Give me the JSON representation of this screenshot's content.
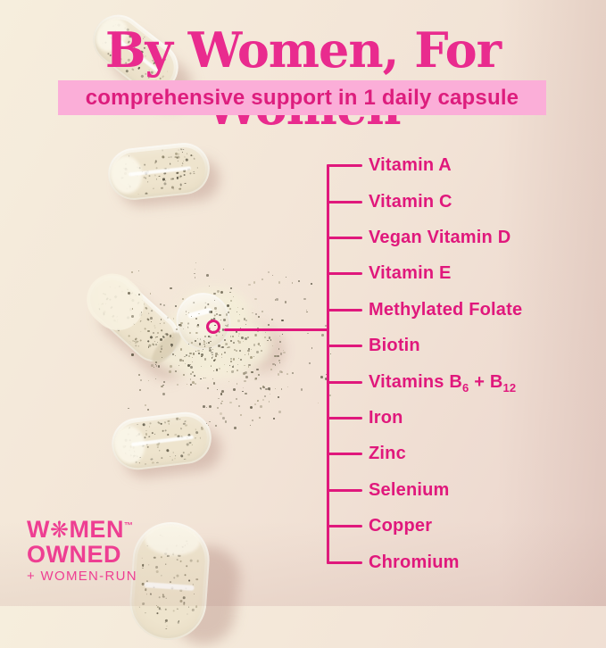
{
  "header": {
    "title": "By Women, For Women"
  },
  "banner": {
    "text": "comprehensive support in 1 daily capsule"
  },
  "nutrient_list": {
    "items": [
      {
        "label": "Vitamin A",
        "parts": [
          {
            "text": "Vitamin A"
          }
        ]
      },
      {
        "label": "Vitamin C",
        "parts": [
          {
            "text": "Vitamin C"
          }
        ]
      },
      {
        "label": "Vegan Vitamin D",
        "parts": [
          {
            "text": "Vegan Vitamin D"
          }
        ]
      },
      {
        "label": "Vitamin E",
        "parts": [
          {
            "text": "Vitamin E"
          }
        ]
      },
      {
        "label": "Methylated Folate",
        "parts": [
          {
            "text": "Methylated Folate"
          }
        ]
      },
      {
        "label": "Biotin",
        "parts": [
          {
            "text": "Biotin"
          }
        ]
      },
      {
        "label": "Vitamins B6 + B12",
        "parts": [
          {
            "text": "Vitamins B"
          },
          {
            "text": "6",
            "sub": true
          },
          {
            "text": " + B"
          },
          {
            "text": "12",
            "sub": true
          }
        ]
      },
      {
        "label": "Iron",
        "parts": [
          {
            "text": "Iron"
          }
        ]
      },
      {
        "label": "Zinc",
        "parts": [
          {
            "text": "Zinc"
          }
        ]
      },
      {
        "label": "Selenium",
        "parts": [
          {
            "text": "Selenium"
          }
        ]
      },
      {
        "label": "Copper",
        "parts": [
          {
            "text": "Copper"
          }
        ]
      },
      {
        "label": "Chromium",
        "parts": [
          {
            "text": "Chromium"
          }
        ]
      }
    ]
  },
  "badge": {
    "line1": {
      "pre": "W",
      "icon_glyph": "❋",
      "post": "MEN",
      "trademark": "™"
    },
    "line2": "OWNED",
    "line3": "+ WOMEN-RUN"
  },
  "colors": {
    "magenta_text": "#e0187c",
    "title_pink": "#e92b8e",
    "banner_bg": "#fbaed8",
    "banner_text": "#dd1d7d",
    "badge_pink": "#ee3e92",
    "background_light": "#f6eedd",
    "background_mid": "#f2e3d6",
    "background_dark": "#ebd5cd"
  }
}
